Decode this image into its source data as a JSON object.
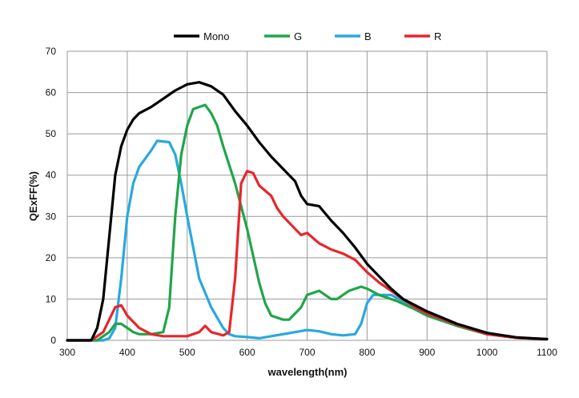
{
  "chart_data": {
    "type": "line",
    "title": "",
    "xlabel": "wavelength(nm)",
    "ylabel": "QExFF(%)",
    "xlim": [
      300,
      1100
    ],
    "ylim": [
      0,
      70
    ],
    "xticks": [
      300,
      400,
      500,
      600,
      700,
      800,
      900,
      1000,
      1100
    ],
    "yticks": [
      0,
      10,
      20,
      30,
      40,
      50,
      60,
      70
    ],
    "grid": true,
    "legend_position": "top",
    "series": [
      {
        "name": "Mono",
        "color": "#000000",
        "points": [
          [
            300,
            0
          ],
          [
            340,
            0
          ],
          [
            350,
            3
          ],
          [
            360,
            10
          ],
          [
            370,
            25
          ],
          [
            380,
            40
          ],
          [
            390,
            47
          ],
          [
            400,
            51
          ],
          [
            410,
            53.5
          ],
          [
            420,
            55
          ],
          [
            440,
            56.5
          ],
          [
            460,
            58.5
          ],
          [
            480,
            60.5
          ],
          [
            500,
            62
          ],
          [
            520,
            62.5
          ],
          [
            540,
            61.5
          ],
          [
            560,
            59.5
          ],
          [
            580,
            55.5
          ],
          [
            600,
            52
          ],
          [
            620,
            48
          ],
          [
            640,
            44.5
          ],
          [
            660,
            41.5
          ],
          [
            680,
            38.5
          ],
          [
            690,
            35
          ],
          [
            700,
            33
          ],
          [
            720,
            32.5
          ],
          [
            740,
            29
          ],
          [
            760,
            26
          ],
          [
            780,
            22.5
          ],
          [
            800,
            18.5
          ],
          [
            820,
            15.5
          ],
          [
            840,
            12.5
          ],
          [
            860,
            10
          ],
          [
            880,
            8.5
          ],
          [
            900,
            7
          ],
          [
            950,
            4
          ],
          [
            1000,
            1.8
          ],
          [
            1050,
            0.7
          ],
          [
            1100,
            0.3
          ]
        ]
      },
      {
        "name": "G",
        "color": "#1fa64a",
        "points": [
          [
            300,
            0
          ],
          [
            350,
            0
          ],
          [
            370,
            2
          ],
          [
            380,
            4
          ],
          [
            390,
            4
          ],
          [
            400,
            3
          ],
          [
            410,
            2
          ],
          [
            420,
            1.5
          ],
          [
            440,
            1.5
          ],
          [
            460,
            2
          ],
          [
            470,
            8
          ],
          [
            480,
            30
          ],
          [
            490,
            45
          ],
          [
            500,
            52
          ],
          [
            510,
            56
          ],
          [
            520,
            56.5
          ],
          [
            530,
            57
          ],
          [
            540,
            55
          ],
          [
            550,
            52
          ],
          [
            560,
            47
          ],
          [
            580,
            38
          ],
          [
            600,
            27
          ],
          [
            620,
            14
          ],
          [
            630,
            9
          ],
          [
            640,
            6
          ],
          [
            660,
            5
          ],
          [
            670,
            5
          ],
          [
            690,
            8
          ],
          [
            700,
            11
          ],
          [
            720,
            12
          ],
          [
            740,
            10
          ],
          [
            750,
            10
          ],
          [
            770,
            12
          ],
          [
            790,
            13
          ],
          [
            800,
            12.5
          ],
          [
            820,
            11
          ],
          [
            850,
            9.5
          ],
          [
            880,
            7.5
          ],
          [
            900,
            6
          ],
          [
            950,
            3.5
          ],
          [
            1000,
            1.5
          ],
          [
            1050,
            0.6
          ],
          [
            1100,
            0.3
          ]
        ]
      },
      {
        "name": "B",
        "color": "#29a8e0",
        "points": [
          [
            300,
            0
          ],
          [
            360,
            0
          ],
          [
            370,
            0.5
          ],
          [
            380,
            3
          ],
          [
            390,
            15
          ],
          [
            400,
            30
          ],
          [
            410,
            38
          ],
          [
            420,
            42
          ],
          [
            440,
            46
          ],
          [
            450,
            48.3
          ],
          [
            470,
            48
          ],
          [
            480,
            45
          ],
          [
            490,
            38
          ],
          [
            500,
            30
          ],
          [
            520,
            15
          ],
          [
            540,
            8
          ],
          [
            560,
            3
          ],
          [
            570,
            1.5
          ],
          [
            580,
            1
          ],
          [
            600,
            0.8
          ],
          [
            620,
            0.5
          ],
          [
            640,
            1
          ],
          [
            660,
            1.5
          ],
          [
            680,
            2
          ],
          [
            700,
            2.5
          ],
          [
            720,
            2.2
          ],
          [
            740,
            1.5
          ],
          [
            760,
            1.2
          ],
          [
            780,
            1.5
          ],
          [
            790,
            4
          ],
          [
            800,
            9
          ],
          [
            810,
            11
          ],
          [
            840,
            11
          ],
          [
            860,
            9.5
          ],
          [
            880,
            7.5
          ],
          [
            900,
            6
          ],
          [
            950,
            3.5
          ],
          [
            1000,
            1.5
          ],
          [
            1050,
            0.6
          ],
          [
            1100,
            0.3
          ]
        ]
      },
      {
        "name": "R",
        "color": "#e8262b",
        "points": [
          [
            300,
            0
          ],
          [
            340,
            0
          ],
          [
            360,
            2
          ],
          [
            380,
            8
          ],
          [
            390,
            8.5
          ],
          [
            400,
            6
          ],
          [
            420,
            3
          ],
          [
            440,
            1.5
          ],
          [
            460,
            1
          ],
          [
            480,
            1
          ],
          [
            500,
            1
          ],
          [
            520,
            2
          ],
          [
            530,
            3.5
          ],
          [
            540,
            2
          ],
          [
            560,
            1.2
          ],
          [
            570,
            2
          ],
          [
            580,
            15
          ],
          [
            590,
            38
          ],
          [
            600,
            41
          ],
          [
            610,
            40.5
          ],
          [
            620,
            37.5
          ],
          [
            640,
            35
          ],
          [
            650,
            32
          ],
          [
            660,
            30
          ],
          [
            680,
            27
          ],
          [
            690,
            25.5
          ],
          [
            700,
            26
          ],
          [
            720,
            23.5
          ],
          [
            740,
            22
          ],
          [
            760,
            21
          ],
          [
            780,
            19.5
          ],
          [
            800,
            16.5
          ],
          [
            820,
            14
          ],
          [
            840,
            12
          ],
          [
            860,
            10
          ],
          [
            880,
            8
          ],
          [
            900,
            6.5
          ],
          [
            950,
            3.8
          ],
          [
            1000,
            1.5
          ],
          [
            1050,
            0.6
          ],
          [
            1100,
            0.3
          ]
        ]
      }
    ]
  }
}
